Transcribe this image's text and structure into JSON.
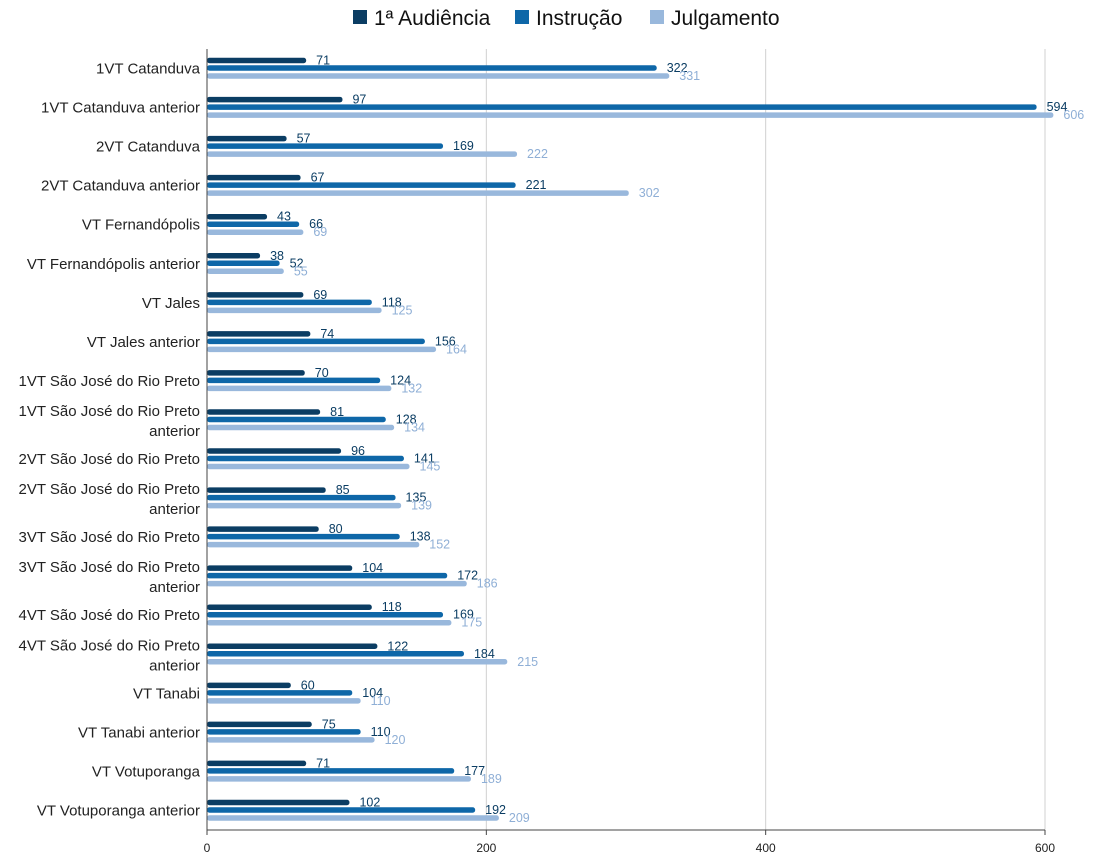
{
  "chart_data": {
    "type": "bar",
    "orientation": "horizontal",
    "title": "",
    "xlabel": "",
    "ylabel": "",
    "xlim": [
      0,
      600
    ],
    "x_ticks": [
      "0",
      "200",
      "400",
      "600"
    ],
    "grid": "vertical",
    "legend_position": "top",
    "categories": [
      "1VT Catanduva",
      "1VT Catanduva anterior",
      "2VT Catanduva",
      "2VT Catanduva anterior",
      "VT Fernandópolis",
      "VT Fernandópolis anterior",
      "VT Jales",
      "VT Jales anterior",
      "1VT São José do Rio Preto",
      "1VT São José do Rio Preto anterior",
      "2VT São José do Rio Preto",
      "2VT São José do Rio Preto anterior",
      "3VT São José do Rio Preto",
      "3VT São José do Rio Preto anterior",
      "4VT São José do Rio Preto",
      "4VT São José do Rio Preto anterior",
      "VT Tanabi",
      "VT Tanabi anterior",
      "VT Votuporanga",
      "VT Votuporanga anterior"
    ],
    "series": [
      {
        "name": "1ª Audiência",
        "color": "#0b3d63",
        "values": [
          71,
          97,
          57,
          67,
          43,
          38,
          69,
          74,
          70,
          81,
          96,
          85,
          80,
          104,
          118,
          122,
          60,
          75,
          71,
          102
        ]
      },
      {
        "name": "Instrução",
        "color": "#0e67a8",
        "values": [
          322,
          594,
          169,
          221,
          66,
          52,
          118,
          156,
          124,
          128,
          141,
          135,
          138,
          172,
          169,
          184,
          104,
          110,
          177,
          192
        ]
      },
      {
        "name": "Julgamento",
        "color": "#99b8dc",
        "values": [
          331,
          606,
          222,
          302,
          69,
          55,
          125,
          164,
          132,
          134,
          145,
          139,
          152,
          186,
          175,
          215,
          110,
          120,
          189,
          209
        ]
      }
    ]
  }
}
